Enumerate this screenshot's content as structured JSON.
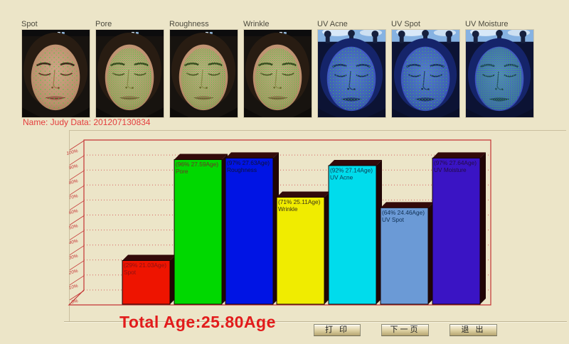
{
  "window": {
    "background": "#ece5c8"
  },
  "patient_info": "Name: Judy Data: 201207130834",
  "face_strip": {
    "overlay_color": "#3ed43e",
    "items": [
      {
        "label": "Spot",
        "mode": "normal",
        "overlay_density": "sparse"
      },
      {
        "label": "Pore",
        "mode": "normal",
        "overlay_density": "dense"
      },
      {
        "label": "Roughness",
        "mode": "normal",
        "overlay_density": "dense"
      },
      {
        "label": "Wrinkle",
        "mode": "normal",
        "overlay_density": "dense"
      },
      {
        "label": "UV Acne",
        "mode": "uv",
        "overlay_density": "medium"
      },
      {
        "label": "UV Spot",
        "mode": "uv",
        "overlay_density": "medium"
      },
      {
        "label": "UV Moisture",
        "mode": "uv",
        "overlay_density": "dense"
      }
    ]
  },
  "chart_data": {
    "type": "bar",
    "title": "",
    "xlabel": "",
    "ylabel": "",
    "ylim": [
      0,
      100
    ],
    "grid": "dotted-red-horizontal",
    "legend": "none",
    "categories": [
      "Spot",
      "Pore",
      "Roughness",
      "Wrinkle",
      "UV Acne",
      "UV Spot",
      "UV Moisture"
    ],
    "values": [
      29,
      96,
      97,
      71,
      92,
      64,
      97
    ],
    "ages": [
      21.03,
      27.59,
      27.63,
      25.11,
      27.14,
      24.46,
      27.64
    ],
    "bar_labels": [
      "(29% 21.03Age)",
      "(96% 27.59Age)",
      "(97% 27.63Age)",
      "(71% 25.11Age)",
      "(92% 27.14Age)",
      "(64% 24.46Age)",
      "(97% 27.64Age)"
    ],
    "bar_colors": [
      "#ee1400",
      "#00d800",
      "#0014e4",
      "#f0ec00",
      "#00dcec",
      "#6b9ad6",
      "#3a14c4"
    ],
    "bar_label_colors": [
      "#8c1212",
      "#70302a",
      "#0e1238",
      "#3c3418",
      "#0e3a52",
      "#0f2f52",
      "#230b44"
    ],
    "yticks": [
      "0%",
      "10%",
      "20%",
      "30%",
      "40%",
      "50%",
      "60%",
      "70%",
      "80%",
      "90%",
      "100%"
    ],
    "axis_color": "#c43434",
    "grid_color": "#d66060"
  },
  "summary": {
    "total_age": "Total Age:25.80Age",
    "color": "#e21b1b"
  },
  "buttons": [
    {
      "label": "打 印"
    },
    {
      "label": "下一页"
    },
    {
      "label": "退 出"
    }
  ]
}
